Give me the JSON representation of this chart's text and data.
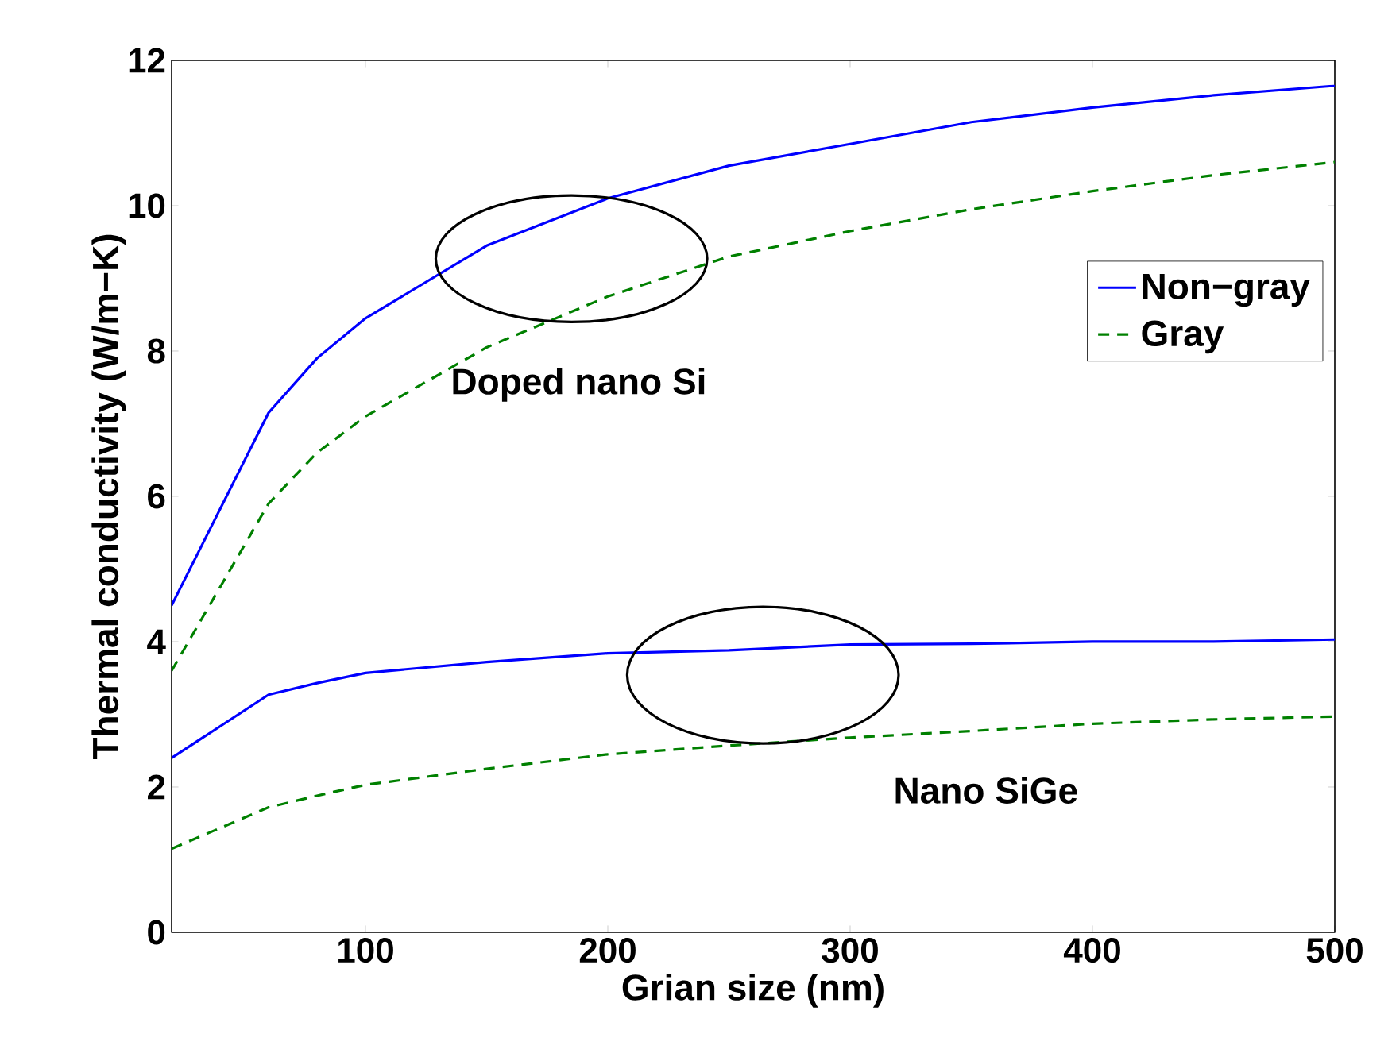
{
  "chart_data": {
    "type": "line",
    "xlabel": "Grian size (nm)",
    "ylabel": "Thermal conductivity (W/m−K)",
    "x": [
      20,
      60,
      80,
      100,
      150,
      200,
      250,
      300,
      350,
      400,
      450,
      500
    ],
    "series": [
      {
        "name": "Non−gray",
        "color": "#0000ff",
        "line_style": "solid",
        "values": [
          4.5,
          7.15,
          7.9,
          8.45,
          9.45,
          10.1,
          10.55,
          10.85,
          11.15,
          11.35,
          11.52,
          11.65
        ]
      },
      {
        "name": "Gray",
        "color": "#008000",
        "line_style": "dashed",
        "values": [
          3.6,
          5.9,
          6.6,
          7.1,
          8.05,
          8.75,
          9.3,
          9.65,
          9.95,
          10.2,
          10.42,
          10.6
        ]
      },
      {
        "color": "#0000ff",
        "line_style": "solid",
        "values": [
          2.4,
          3.27,
          3.43,
          3.57,
          3.72,
          3.84,
          3.88,
          3.96,
          3.97,
          4.0,
          4.0,
          4.03
        ]
      },
      {
        "color": "#008000",
        "line_style": "dashed",
        "values": [
          1.15,
          1.72,
          1.88,
          2.03,
          2.25,
          2.45,
          2.57,
          2.68,
          2.77,
          2.87,
          2.93,
          2.97
        ]
      }
    ],
    "xlim": [
      20,
      500
    ],
    "xticks": [
      100,
      200,
      300,
      400,
      500
    ],
    "ylim": [
      0,
      12
    ],
    "yticks": [
      0,
      2,
      4,
      6,
      8,
      10,
      12
    ],
    "grid": false,
    "legend": "right",
    "marker": "none",
    "annotations": [
      "Doped nano Si",
      "Nano SiGe"
    ]
  }
}
